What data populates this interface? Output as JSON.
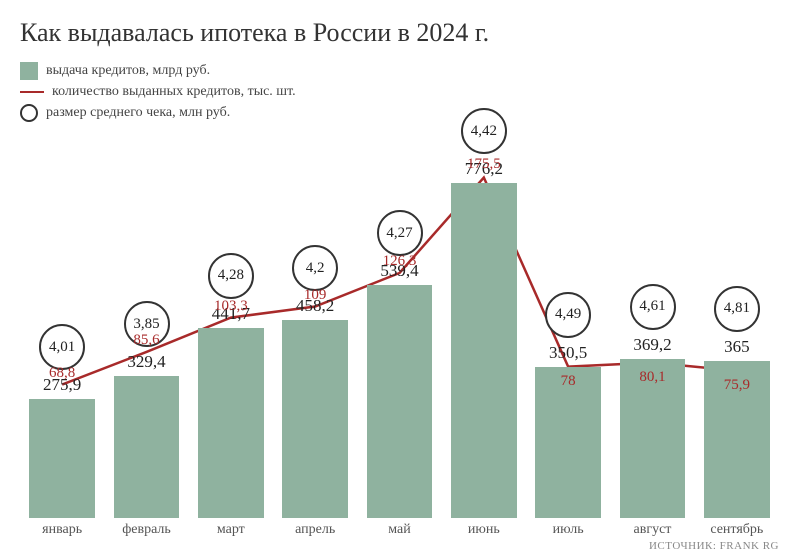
{
  "title": "Как выдавалась ипотека в России в 2024 г.",
  "legend": {
    "bar": "выдача кредитов, млрд руб.",
    "line": "количество выданных кредитов, тыс. шт.",
    "circle": "размер среднего чека, млн руб."
  },
  "chart": {
    "type": "bar+line+bubble",
    "months": [
      "январь",
      "февраль",
      "март",
      "апрель",
      "май",
      "июнь",
      "июль",
      "август",
      "сентябрь"
    ],
    "bar_values": [
      275.9,
      329.4,
      441.7,
      458.2,
      539.4,
      776.2,
      350.5,
      369.2,
      365
    ],
    "bar_labels": [
      "275,9",
      "329,4",
      "441,7",
      "458,2",
      "539,4",
      "776,2",
      "350,5",
      "369,2",
      "365"
    ],
    "line_values": [
      68.8,
      85.6,
      103.3,
      109,
      126.3,
      175.5,
      78,
      80.1,
      75.9
    ],
    "line_labels": [
      "68,8",
      "85,6",
      "103,3",
      "109",
      "126,3",
      "175,5",
      "78",
      "80,1",
      "75,9"
    ],
    "circle_values": [
      4.01,
      3.85,
      4.28,
      4.2,
      4.27,
      4.42,
      4.49,
      4.61,
      4.81
    ],
    "circle_labels": [
      "4,01",
      "3,85",
      "4,28",
      "4,2",
      "4,27",
      "4,42",
      "4,49",
      "4,61",
      "4,81"
    ],
    "colors": {
      "bar": "#8fb29f",
      "line": "#a82a2a",
      "circle_stroke": "#333333",
      "circle_fill": "#ffffff",
      "text": "#222222",
      "axis_text": "#555555",
      "background": "#ffffff"
    },
    "bar_max": 900,
    "line_max": 200,
    "circle_diameter": 46,
    "bar_width_ratio": 0.78,
    "title_fontsize": 26,
    "label_fontsize": 17,
    "line_label_fontsize": 15,
    "circle_fontsize": 15,
    "axis_fontsize": 14,
    "line_width": 2.5
  },
  "source": "ИСТОЧНИК: FRANK RG"
}
